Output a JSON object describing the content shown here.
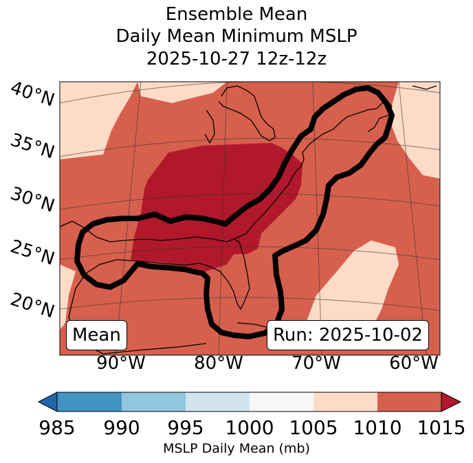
{
  "title": {
    "line1": "Ensemble Mean",
    "line2": "Daily Mean Minimum MSLP",
    "line3": "2025-10-27 12z-12z"
  },
  "map": {
    "lat_labels": [
      "40°N",
      "35°N",
      "30°N",
      "25°N",
      "20°N"
    ],
    "lon_labels": [
      "90°W",
      "80°W",
      "70°W",
      "60°W"
    ],
    "left_box": "Mean",
    "right_box": "Run: 2025-10-02",
    "colors": {
      "gt1015": "#b2182b",
      "r1010_1015": "#d6604d",
      "r1005_1010": "#fddbc7",
      "contour": "#000000"
    }
  },
  "colorbar": {
    "ticks": [
      "985",
      "990",
      "995",
      "1000",
      "1005",
      "1010",
      "1015"
    ],
    "label": "MSLP Daily Mean (mb)",
    "colors": [
      "#2166ac",
      "#4393c3",
      "#92c5de",
      "#d1e5f0",
      "#f7f7f7",
      "#fddbc7",
      "#d6604d",
      "#b2182b"
    ]
  }
}
